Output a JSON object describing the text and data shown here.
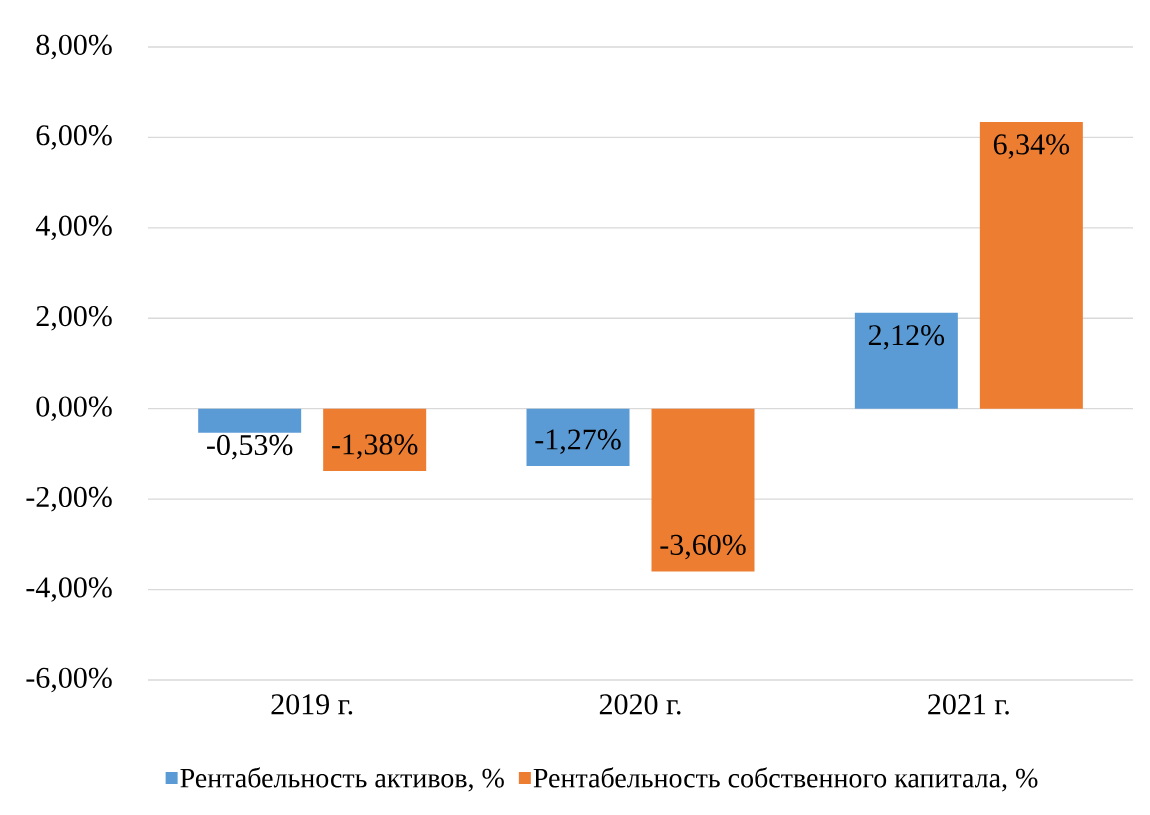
{
  "chart_data": {
    "type": "bar",
    "categories": [
      "2019 г.",
      "2020 г.",
      "2021 г."
    ],
    "series": [
      {
        "name": "Рентабельность активов, %",
        "color": "#5b9bd5",
        "values": [
          -0.53,
          -1.27,
          2.12
        ],
        "value_labels": [
          "-0,53%",
          "-1,27%",
          "2,12%"
        ]
      },
      {
        "name": "Рентабельность собственного капитала, %",
        "color": "#ed7d31",
        "values": [
          -1.38,
          -3.6,
          6.34
        ],
        "value_labels": [
          "-1,38%",
          "-3,60%",
          "6,34%"
        ]
      }
    ],
    "ylim": [
      -6,
      8
    ],
    "yticks": [
      {
        "value": -6,
        "label": "-6,00%"
      },
      {
        "value": -4,
        "label": "-4,00%"
      },
      {
        "value": -2,
        "label": "-2,00%"
      },
      {
        "value": 0,
        "label": "0,00%"
      },
      {
        "value": 2,
        "label": "2,00%"
      },
      {
        "value": 4,
        "label": "4,00%"
      },
      {
        "value": 6,
        "label": "6,00%"
      },
      {
        "value": 8,
        "label": "8,00%"
      }
    ],
    "grid": "y",
    "legend": "bottom"
  }
}
